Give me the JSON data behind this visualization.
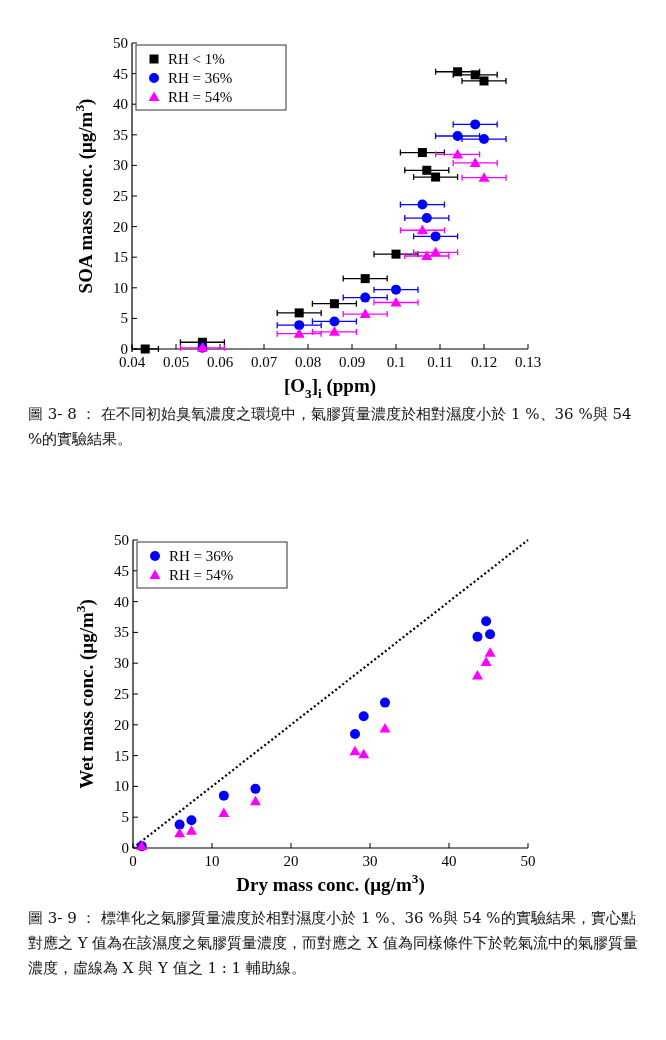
{
  "chart_data": [
    {
      "type": "scatter",
      "xlabel": "[O$_{3}$]$_{i}$ (ppm)",
      "ylabel": "SOA mass conc. (μg/m$^{3}$)",
      "xlim": [
        0.04,
        0.13
      ],
      "ylim": [
        0,
        50
      ],
      "xticks": [
        0.04,
        0.05,
        0.06,
        0.07,
        0.08,
        0.09,
        0.1,
        0.11,
        0.12,
        0.13
      ],
      "yticks": [
        0,
        5,
        10,
        15,
        20,
        25,
        30,
        35,
        40,
        45,
        50
      ],
      "legend": "top left",
      "grid": false,
      "series": [
        {
          "name": "RH < 1%",
          "color": "#000000",
          "marker": "square",
          "x": [
            0.043,
            0.056,
            0.078,
            0.086,
            0.093,
            0.1,
            0.106,
            0.107,
            0.109,
            0.114,
            0.118,
            0.12
          ],
          "values": [
            0,
            1.1,
            5.9,
            7.4,
            11.5,
            15.5,
            32.1,
            29.2,
            28.1,
            45.3,
            44.8,
            43.8
          ],
          "xerrors": [
            0.003,
            0.005,
            0.005,
            0.005,
            0.005,
            0.005,
            0.005,
            0.005,
            0.005,
            0.005,
            0.005,
            0.005
          ]
        },
        {
          "name": "RH = 36%",
          "color": "#0000ff",
          "marker": "circle",
          "x": [
            0.056,
            0.078,
            0.086,
            0.093,
            0.1,
            0.106,
            0.107,
            0.109,
            0.114,
            0.118,
            0.12
          ],
          "values": [
            0.2,
            3.9,
            4.5,
            8.4,
            9.7,
            23.6,
            21.4,
            18.4,
            34.8,
            36.7,
            34.3
          ],
          "xerrors": [
            null,
            0.005,
            0.005,
            0.005,
            0.005,
            0.005,
            0.005,
            0.005,
            0.005,
            0.005,
            0.005
          ]
        },
        {
          "name": "RH = 54%",
          "color": "#ff00ff",
          "marker": "triangle",
          "x": [
            0.056,
            0.078,
            0.086,
            0.093,
            0.1,
            0.106,
            0.107,
            0.109,
            0.114,
            0.118,
            0.12
          ],
          "values": [
            0.2,
            2.5,
            2.8,
            5.7,
            7.6,
            19.4,
            15.2,
            15.8,
            31.8,
            30.4,
            28.0
          ],
          "xerrors": [
            0.005,
            0.005,
            0.005,
            0.005,
            0.005,
            0.005,
            0.005,
            0.005,
            0.005,
            0.005,
            0.005
          ]
        }
      ],
      "annotations": [
        "圖 3- 8 ： 在不同初始臭氧濃度之環境中，氣膠質量濃度於相對濕度小於 1 %、36 %與 54 %的實驗結果。"
      ]
    },
    {
      "type": "scatter",
      "xlabel": "Dry mass conc. (μg/m$^{3}$)",
      "ylabel": "Wet mass conc. (μg/m$^{3}$)",
      "xlim": [
        0,
        50
      ],
      "ylim": [
        0,
        50
      ],
      "xticks": [
        0,
        10,
        20,
        30,
        40,
        50
      ],
      "yticks": [
        0,
        5,
        10,
        15,
        20,
        25,
        30,
        35,
        40,
        45,
        50
      ],
      "legend": "top left",
      "grid": false,
      "series": [
        {
          "type": "line",
          "color": "#000000",
          "marker": "none",
          "line_style": "dotted",
          "x": [
            0,
            50
          ],
          "values": [
            0,
            50
          ]
        },
        {
          "name": "RH = 36%",
          "color": "#0000ff",
          "marker": "circle",
          "x": [
            1.1,
            5.9,
            7.4,
            11.5,
            15.5,
            28.1,
            29.2,
            31.9,
            43.6,
            44.7,
            45.2
          ],
          "values": [
            0.3,
            3.8,
            4.5,
            8.5,
            9.6,
            18.5,
            21.4,
            23.6,
            34.3,
            36.8,
            34.7
          ]
        },
        {
          "name": "RH = 54%",
          "color": "#ff00ff",
          "marker": "triangle",
          "x": [
            1.1,
            5.9,
            7.4,
            11.5,
            15.5,
            28.1,
            29.2,
            31.9,
            43.6,
            44.7,
            45.2
          ],
          "values": [
            0.3,
            2.4,
            2.8,
            5.7,
            7.6,
            15.7,
            15.2,
            19.4,
            28.0,
            30.2,
            31.7
          ]
        }
      ],
      "annotations": [
        "圖 3- 9 ： 標準化之氣膠質量濃度於相對濕度小於 1 %、36 %與 54 %的實驗結果，實心點對應之 Y 值為在該濕度之氣膠質量濃度，而對應之 X 值為同樣條件下於乾氣流中的氣膠質量濃度，虛線為 X 與 Y 值之 1 : 1 輔助線。"
      ]
    }
  ]
}
